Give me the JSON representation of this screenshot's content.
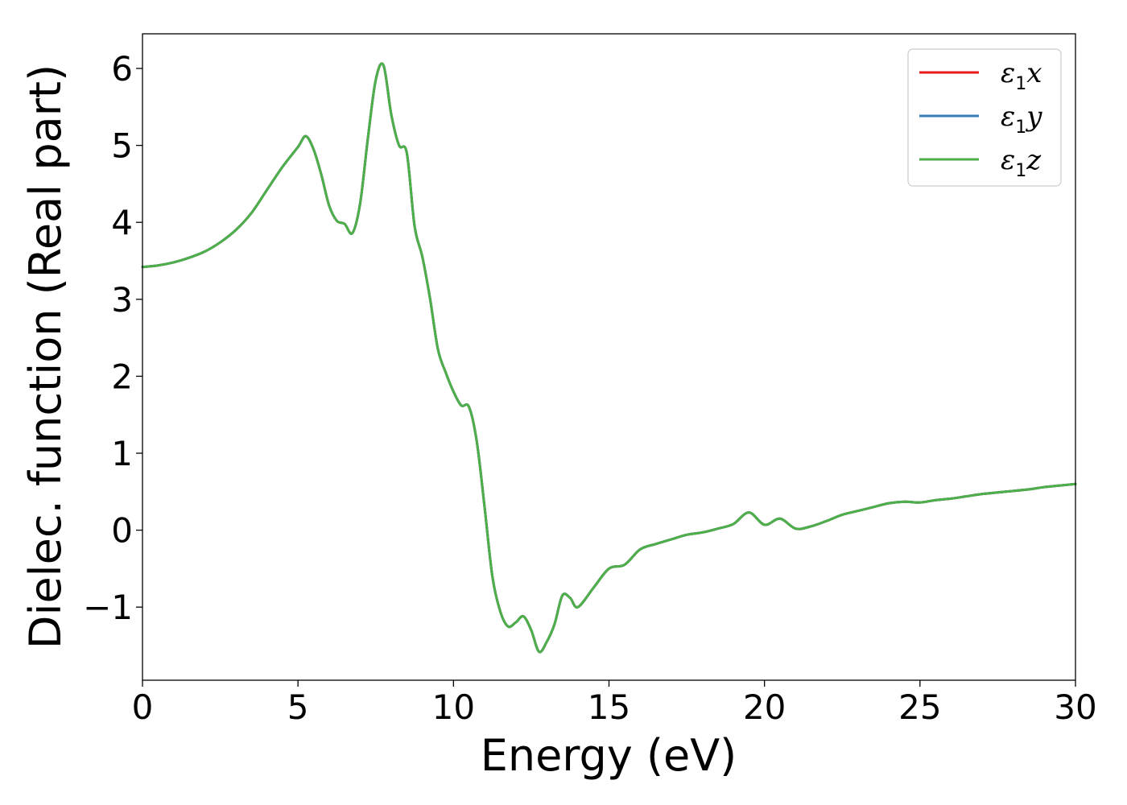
{
  "chart_data": {
    "type": "line",
    "xlabel": "Energy (eV)",
    "ylabel": "Dielec. function (Real part)",
    "xlim": [
      0,
      30
    ],
    "ylim": [
      -1.95,
      6.45
    ],
    "xticks": [
      0,
      5,
      10,
      15,
      20,
      25,
      30
    ],
    "xtick_labels": [
      "0",
      "5",
      "10",
      "15",
      "20",
      "25",
      "30"
    ],
    "yticks": [
      -1,
      0,
      1,
      2,
      3,
      4,
      5,
      6
    ],
    "ytick_labels": [
      "−1",
      "0",
      "1",
      "2",
      "3",
      "4",
      "5",
      "6"
    ],
    "grid": false,
    "legend_position": "top-right",
    "x": [
      0,
      0.5,
      1,
      1.5,
      2,
      2.5,
      3,
      3.5,
      4,
      4.5,
      5,
      5.25,
      5.5,
      5.75,
      6,
      6.25,
      6.5,
      6.75,
      7,
      7.25,
      7.5,
      7.75,
      8,
      8.25,
      8.5,
      8.75,
      9,
      9.25,
      9.5,
      9.75,
      10,
      10.25,
      10.5,
      10.75,
      11,
      11.25,
      11.5,
      11.75,
      12,
      12.25,
      12.5,
      12.75,
      13,
      13.25,
      13.5,
      13.75,
      14,
      14.5,
      15,
      15.5,
      16,
      16.5,
      17,
      17.5,
      18,
      18.5,
      19,
      19.5,
      20,
      20.5,
      21,
      21.5,
      22,
      22.5,
      23,
      23.5,
      24,
      24.5,
      25,
      25.5,
      26,
      26.5,
      27,
      27.5,
      28,
      28.5,
      29,
      29.5,
      30
    ],
    "series": [
      {
        "name": "x",
        "color": "#e41a1c",
        "values": [
          3.42,
          3.44,
          3.48,
          3.54,
          3.62,
          3.74,
          3.9,
          4.12,
          4.42,
          4.72,
          4.98,
          5.12,
          4.95,
          4.62,
          4.22,
          4.02,
          3.98,
          3.86,
          4.25,
          5.1,
          5.85,
          6.04,
          5.4,
          5.0,
          4.9,
          3.95,
          3.55,
          3.0,
          2.35,
          2.05,
          1.8,
          1.62,
          1.6,
          1.15,
          0.3,
          -0.6,
          -1.05,
          -1.25,
          -1.2,
          -1.12,
          -1.3,
          -1.58,
          -1.45,
          -1.22,
          -0.85,
          -0.88,
          -1.0,
          -0.75,
          -0.5,
          -0.45,
          -0.25,
          -0.18,
          -0.12,
          -0.06,
          -0.03,
          0.02,
          0.08,
          0.23,
          0.07,
          0.15,
          0.02,
          0.05,
          0.12,
          0.2,
          0.25,
          0.3,
          0.35,
          0.37,
          0.36,
          0.39,
          0.41,
          0.44,
          0.47,
          0.49,
          0.51,
          0.53,
          0.56,
          0.58,
          0.6
        ]
      },
      {
        "name": "y",
        "color": "#377eb8",
        "values": [
          3.42,
          3.44,
          3.48,
          3.54,
          3.62,
          3.74,
          3.9,
          4.12,
          4.42,
          4.72,
          4.98,
          5.12,
          4.95,
          4.62,
          4.22,
          4.02,
          3.98,
          3.86,
          4.25,
          5.1,
          5.85,
          6.04,
          5.4,
          5.0,
          4.9,
          3.95,
          3.55,
          3.0,
          2.35,
          2.05,
          1.8,
          1.62,
          1.6,
          1.15,
          0.3,
          -0.6,
          -1.05,
          -1.25,
          -1.2,
          -1.12,
          -1.3,
          -1.58,
          -1.45,
          -1.22,
          -0.85,
          -0.88,
          -1.0,
          -0.75,
          -0.5,
          -0.45,
          -0.25,
          -0.18,
          -0.12,
          -0.06,
          -0.03,
          0.02,
          0.08,
          0.23,
          0.07,
          0.15,
          0.02,
          0.05,
          0.12,
          0.2,
          0.25,
          0.3,
          0.35,
          0.37,
          0.36,
          0.39,
          0.41,
          0.44,
          0.47,
          0.49,
          0.51,
          0.53,
          0.56,
          0.58,
          0.6
        ]
      },
      {
        "name": "z",
        "color": "#4daf4a",
        "values": [
          3.42,
          3.44,
          3.48,
          3.54,
          3.62,
          3.74,
          3.9,
          4.12,
          4.42,
          4.72,
          4.98,
          5.12,
          4.95,
          4.62,
          4.22,
          4.02,
          3.98,
          3.86,
          4.25,
          5.1,
          5.85,
          6.04,
          5.4,
          5.0,
          4.9,
          3.95,
          3.55,
          3.0,
          2.35,
          2.05,
          1.8,
          1.62,
          1.6,
          1.15,
          0.3,
          -0.6,
          -1.05,
          -1.25,
          -1.2,
          -1.12,
          -1.3,
          -1.58,
          -1.45,
          -1.22,
          -0.85,
          -0.88,
          -1.0,
          -0.75,
          -0.5,
          -0.45,
          -0.25,
          -0.18,
          -0.12,
          -0.06,
          -0.03,
          0.02,
          0.08,
          0.23,
          0.07,
          0.15,
          0.02,
          0.05,
          0.12,
          0.2,
          0.25,
          0.3,
          0.35,
          0.37,
          0.36,
          0.39,
          0.41,
          0.44,
          0.47,
          0.49,
          0.51,
          0.53,
          0.56,
          0.58,
          0.6
        ]
      }
    ],
    "legend": [
      {
        "base": "ε",
        "sub": "1",
        "axis": "x",
        "color": "#e41a1c"
      },
      {
        "base": "ε",
        "sub": "1",
        "axis": "y",
        "color": "#377eb8"
      },
      {
        "base": "ε",
        "sub": "1",
        "axis": "z",
        "color": "#4daf4a"
      }
    ]
  }
}
